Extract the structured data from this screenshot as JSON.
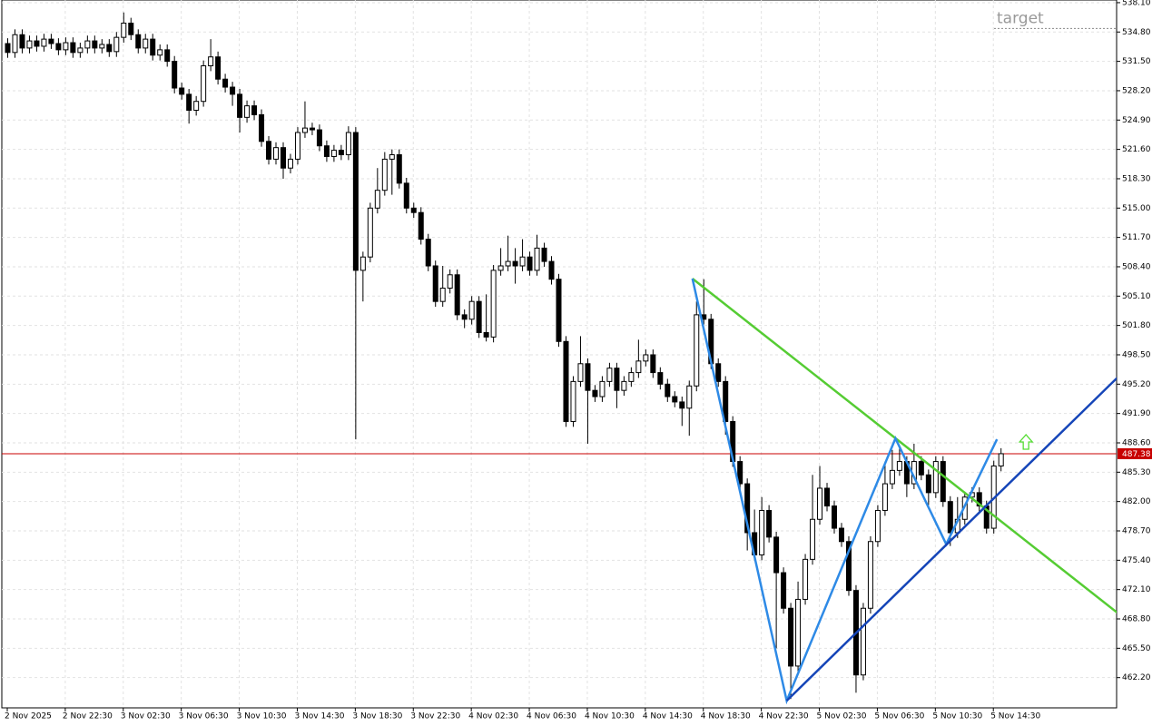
{
  "chart_data": {
    "type": "candlestick",
    "open": [
      533.5,
      532.5,
      534.5,
      533,
      533.8,
      533.2,
      534,
      533.5,
      532.8,
      533.6,
      532.5,
      533,
      533.8,
      533,
      533.4,
      532.6,
      534.2,
      535.8,
      534.5,
      533,
      534,
      532.2,
      532.8,
      531.5,
      528.5,
      527.8,
      526,
      527,
      531,
      532,
      529.5,
      528.6,
      527.8,
      525.2,
      526.5,
      525.5,
      522.5,
      520.5,
      521.8,
      519.5,
      520.5,
      523.5,
      524,
      523.8,
      522,
      520.8,
      521.5,
      521,
      523.5,
      508,
      509.5,
      515,
      517,
      520.5,
      521,
      517.8,
      515,
      514.5,
      511.5,
      508.5,
      504.5,
      506,
      507.5,
      503,
      502.5,
      504.5,
      501,
      500.5,
      508,
      508.5,
      509,
      508.5,
      509.5,
      508,
      510.5,
      509,
      507,
      500,
      491,
      495.5,
      497.5,
      494.5,
      493.8,
      495.5,
      497,
      494.5,
      495.5,
      496.5,
      497.8,
      498.5,
      496.5,
      495.2,
      493.8,
      493.2,
      492.5,
      495,
      503,
      502.5,
      497.5,
      495.5,
      491,
      486.5,
      484,
      478.5,
      476,
      481,
      478,
      474,
      470,
      463.5,
      471,
      475.5,
      480,
      483.5,
      481.5,
      479,
      477.5,
      472,
      462.5,
      470,
      477.5,
      481,
      484,
      485.5,
      486.5,
      484,
      486.5,
      485,
      483,
      486.5,
      482,
      478.5,
      480,
      482.5,
      483,
      481.5,
      479,
      486
    ],
    "high": [
      534.1,
      535.1,
      535.1,
      534.4,
      534.4,
      534.6,
      534.6,
      534.1,
      534.2,
      534.2,
      533.6,
      534.4,
      534.4,
      534,
      534,
      534.8,
      537,
      536.4,
      535.1,
      534.6,
      534.6,
      533.4,
      533.4,
      532.1,
      529.1,
      528.4,
      527.6,
      531.6,
      534,
      532.6,
      530.1,
      529.2,
      528.4,
      527.1,
      527.1,
      526.1,
      523.1,
      522.4,
      522.4,
      521.1,
      524.1,
      527,
      524.6,
      524.4,
      522.6,
      522.1,
      522.1,
      524.2,
      524.1,
      510.1,
      515.6,
      519.5,
      521.3,
      521.6,
      521.6,
      518.4,
      515.6,
      515.1,
      512.1,
      509.1,
      508.5,
      508.1,
      508.1,
      503.6,
      505.1,
      505.1,
      505.3,
      508.6,
      510.5,
      511.9,
      510.5,
      511.5,
      510.1,
      512,
      511.1,
      509.6,
      507.6,
      500.6,
      496.1,
      500.6,
      498.1,
      495.1,
      496.1,
      497.6,
      497.6,
      496.1,
      497.1,
      500.2,
      499.1,
      499.1,
      497.1,
      495.8,
      494.4,
      493.8,
      495.6,
      504.5,
      507,
      503.1,
      498.1,
      496.1,
      491.6,
      487.1,
      484.6,
      481.1,
      482.5,
      481.6,
      478.6,
      474.6,
      470.6,
      473,
      476.1,
      485,
      486,
      484.1,
      482.1,
      479.6,
      478.1,
      472.6,
      470.6,
      478.1,
      481.6,
      486.5,
      487.8,
      488.2,
      487.1,
      488.5,
      487.1,
      485.6,
      487.1,
      487.1,
      482.6,
      482.5,
      483.1,
      483.6,
      483.6,
      482.1,
      486.6,
      488
    ],
    "low": [
      531.9,
      531.9,
      532.4,
      532.4,
      532.6,
      532.6,
      532.9,
      532.2,
      532.2,
      531.9,
      531.9,
      532.4,
      532.4,
      532.4,
      532,
      532,
      533.6,
      533.9,
      532.4,
      532.4,
      531.6,
      531.6,
      530.9,
      527.9,
      527.2,
      524.5,
      525.4,
      526.4,
      530.4,
      528.9,
      528,
      526.5,
      523.5,
      524.6,
      524.9,
      521.9,
      519.9,
      519.9,
      518.3,
      518.9,
      519.9,
      522.9,
      523.2,
      521.4,
      520.2,
      520.2,
      520.4,
      520.4,
      489,
      504.5,
      508.9,
      514.4,
      516.4,
      516.5,
      517.2,
      514.4,
      513.9,
      510.9,
      507.9,
      503.9,
      503.9,
      505.4,
      502.4,
      501.5,
      501.9,
      500.4,
      500,
      499.9,
      507.4,
      507.9,
      506.5,
      507.9,
      507.4,
      507.4,
      508.4,
      506.4,
      499.4,
      490.4,
      490.4,
      494.9,
      488.5,
      493.2,
      493.2,
      494.9,
      492.5,
      493.9,
      494.9,
      495.9,
      497.2,
      495.9,
      494.6,
      493.2,
      492.6,
      490.5,
      489.4,
      494.4,
      501.9,
      496.9,
      494.9,
      489.5,
      485.9,
      483.4,
      476.5,
      475.4,
      475.4,
      477.4,
      465.5,
      469.4,
      459.8,
      462.9,
      470.4,
      474.9,
      479.4,
      480.9,
      478.4,
      476.9,
      471.4,
      460.5,
      461.9,
      469.4,
      476.9,
      480.4,
      483.4,
      484.9,
      482.5,
      483.4,
      484.4,
      481.6,
      482.4,
      481.4,
      477,
      477.9,
      479.4,
      481.9,
      480.9,
      478.4,
      478.4,
      485.4
    ],
    "close": [
      532.5,
      534.5,
      533,
      533.8,
      533.2,
      534,
      533.5,
      532.8,
      533.6,
      532.5,
      533,
      533.8,
      533,
      533.4,
      532.6,
      534.2,
      535.8,
      534.5,
      533,
      534,
      532.2,
      532.8,
      531.5,
      528.5,
      527.8,
      526,
      527,
      531,
      532,
      529.5,
      528.6,
      527.8,
      525.2,
      526.5,
      525.5,
      522.5,
      520.5,
      521.8,
      519.5,
      520.5,
      523.5,
      524,
      523.8,
      522,
      520.8,
      521.5,
      521,
      523.5,
      508,
      509.5,
      515,
      517,
      520.5,
      521,
      517.8,
      515,
      514.5,
      511.5,
      508.5,
      504.5,
      506,
      507.5,
      503,
      502.5,
      504.5,
      501,
      500.5,
      508,
      508.5,
      509,
      508.5,
      509.5,
      508,
      510.5,
      509,
      507,
      500,
      491,
      495.5,
      497.5,
      494.5,
      493.8,
      495.5,
      497,
      494.5,
      495.5,
      496.5,
      497.8,
      498.5,
      496.5,
      495.2,
      493.8,
      493.2,
      492.5,
      495,
      503,
      502.5,
      497.5,
      495.5,
      491,
      486.5,
      484,
      478.5,
      476,
      481,
      478,
      474,
      470,
      463.5,
      471,
      475.5,
      480,
      483.5,
      481.5,
      479,
      477.5,
      472,
      462.5,
      470,
      477.5,
      481,
      484,
      485.5,
      486.5,
      484,
      486.5,
      485,
      483,
      486.5,
      482,
      478.5,
      480,
      482.5,
      483,
      481.5,
      479,
      486,
      487.38
    ],
    "bull_color": "#ffffff",
    "bear_color": "#000000",
    "outline_color": "#000000",
    "xlim": [
      -0.75,
      153
    ],
    "ylim": [
      458.8,
      538.4
    ],
    "xticks": [
      {
        "value": 0,
        "label": "2 Nov 2025"
      },
      {
        "value": 8,
        "label": "2 Nov 22:30"
      },
      {
        "value": 16,
        "label": "3 Nov 02:30"
      },
      {
        "value": 24,
        "label": "3 Nov 06:30"
      },
      {
        "value": 32,
        "label": "3 Nov 10:30"
      },
      {
        "value": 40,
        "label": "3 Nov 14:30"
      },
      {
        "value": 48,
        "label": "3 Nov 18:30"
      },
      {
        "value": 56,
        "label": "3 Nov 22:30"
      },
      {
        "value": 64,
        "label": "4 Nov 02:30"
      },
      {
        "value": 72,
        "label": "4 Nov 06:30"
      },
      {
        "value": 80,
        "label": "4 Nov 10:30"
      },
      {
        "value": 88,
        "label": "4 Nov 14:30"
      },
      {
        "value": 96,
        "label": "4 Nov 18:30"
      },
      {
        "value": 104,
        "label": "4 Nov 22:30"
      },
      {
        "value": 112,
        "label": "5 Nov 02:30"
      },
      {
        "value": 120,
        "label": "5 Nov 06:30"
      },
      {
        "value": 128,
        "label": "5 Nov 10:30"
      },
      {
        "value": 136,
        "label": "5 Nov 14:30"
      }
    ],
    "yticks": [
      {
        "value": 538.1,
        "label": "538.10"
      },
      {
        "value": 534.8,
        "label": "534.80"
      },
      {
        "value": 531.5,
        "label": "531.50"
      },
      {
        "value": 528.2,
        "label": "528.20"
      },
      {
        "value": 524.9,
        "label": "524.90"
      },
      {
        "value": 521.6,
        "label": "521.60"
      },
      {
        "value": 518.3,
        "label": "518.30"
      },
      {
        "value": 515,
        "label": "515.00"
      },
      {
        "value": 511.7,
        "label": "511.70"
      },
      {
        "value": 508.4,
        "label": "508.40"
      },
      {
        "value": 505.1,
        "label": "505.10"
      },
      {
        "value": 501.8,
        "label": "501.80"
      },
      {
        "value": 498.5,
        "label": "498.50"
      },
      {
        "value": 495.2,
        "label": "495.20"
      },
      {
        "value": 491.9,
        "label": "491.90"
      },
      {
        "value": 488.6,
        "label": "488.60"
      },
      {
        "value": 485.3,
        "label": "485.30"
      },
      {
        "value": 482,
        "label": "482.00"
      },
      {
        "value": 478.7,
        "label": "478.70"
      },
      {
        "value": 475.4,
        "label": "475.40"
      },
      {
        "value": 472.1,
        "label": "472.10"
      },
      {
        "value": 468.8,
        "label": "468.80"
      },
      {
        "value": 465.5,
        "label": "465.50"
      },
      {
        "value": 462.2,
        "label": "462.20"
      }
    ],
    "grid": true,
    "current_price": 487.38,
    "current_price_color": "#c80000",
    "target_label": "target",
    "target_level": 535.2,
    "lines": [
      {
        "name": "trendline",
        "color": "#55cc33",
        "width": 2.5,
        "x": [
          94.5,
          153.25
        ],
        "y": [
          507.07,
          469.4
        ]
      },
      {
        "name": "zigzag",
        "color": "#2e8ae6",
        "width": 2.5,
        "x": [
          94.5,
          107.5,
          122.5,
          129.5,
          136.5
        ],
        "y": [
          507.07,
          459.6,
          489.1,
          477.2,
          489.0
        ]
      },
      {
        "name": "support",
        "color": "#1545b8",
        "width": 2.5,
        "x": [
          107.5,
          153.25
        ],
        "y": [
          459.6,
          496.05
        ]
      }
    ],
    "signal_arrow": {
      "x": 140.5,
      "y": 488.6,
      "color": "#55dd33"
    }
  }
}
